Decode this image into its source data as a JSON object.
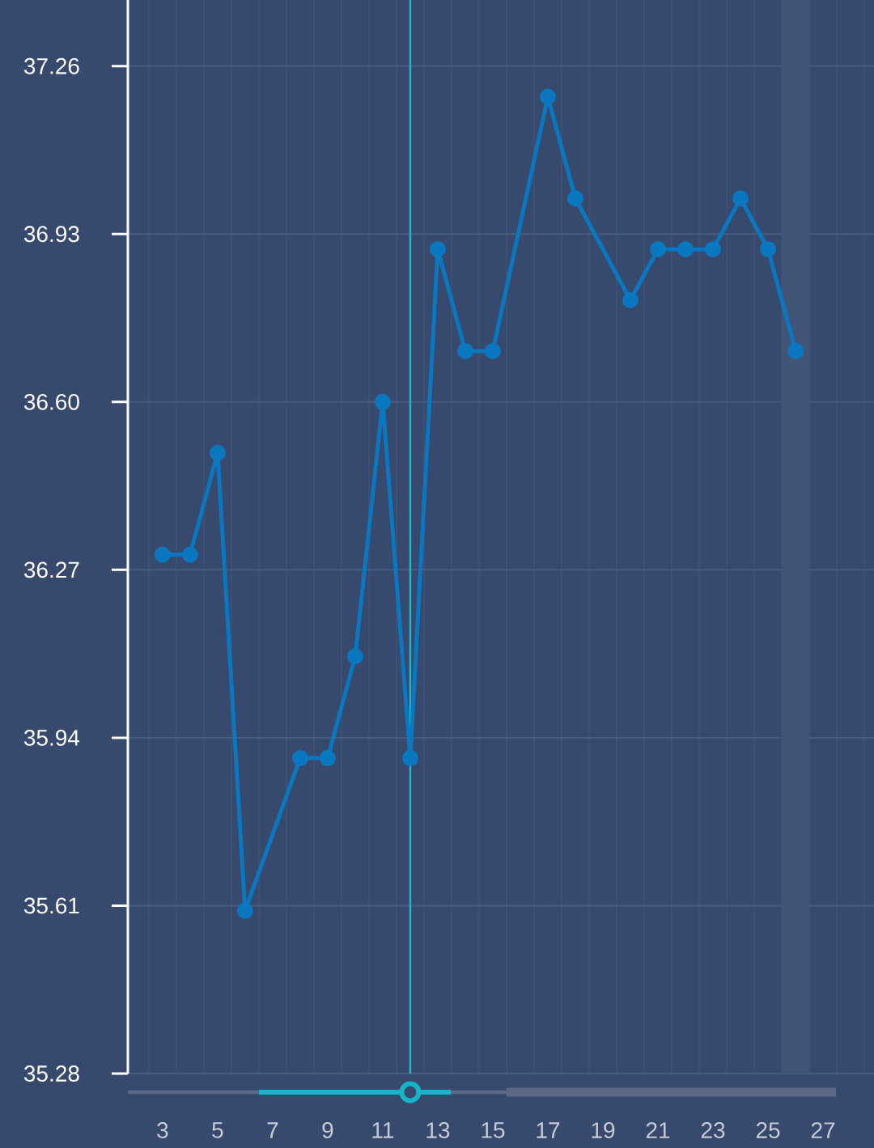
{
  "chart_data": {
    "type": "line",
    "x": [
      3,
      4,
      5,
      6,
      8,
      9,
      10,
      11,
      12,
      13,
      14,
      15,
      17,
      18,
      20,
      21,
      22,
      23,
      24,
      25,
      26
    ],
    "series": [
      {
        "color": "#0a78c0",
        "values": [
          36.3,
          36.3,
          36.5,
          35.6,
          35.9,
          35.9,
          36.1,
          36.6,
          35.9,
          36.9,
          36.7,
          36.7,
          37.2,
          37.0,
          36.8,
          36.9,
          36.9,
          36.9,
          37.0,
          36.9,
          36.7
        ]
      }
    ],
    "xlim": [
      1.74,
      28.85
    ],
    "ylim": [
      35.28,
      37.39
    ],
    "xticks": [
      3,
      5,
      7,
      9,
      11,
      13,
      15,
      17,
      19,
      21,
      23,
      25,
      27,
      {
        "value": 2.5,
        "label": null
      },
      {
        "value": 3.5,
        "label": null
      },
      {
        "value": 4.5,
        "label": null
      },
      {
        "value": 5.5,
        "label": null
      },
      {
        "value": 6.5,
        "label": null
      },
      {
        "value": 7.5,
        "label": null
      },
      {
        "value": 8.5,
        "label": null
      },
      {
        "value": 9.5,
        "label": null
      },
      {
        "value": 10.5,
        "label": null
      },
      {
        "value": 11.5,
        "label": null
      },
      {
        "value": 12.5,
        "label": null
      },
      {
        "value": 13.5,
        "label": null
      },
      {
        "value": 14.5,
        "label": null
      },
      {
        "value": 15.5,
        "label": null
      },
      {
        "value": 16.5,
        "label": null
      },
      {
        "value": 17.5,
        "label": null
      },
      {
        "value": 18.5,
        "label": null
      },
      {
        "value": 19.5,
        "label": null
      },
      {
        "value": 20.5,
        "label": null
      },
      {
        "value": 21.5,
        "label": null
      },
      {
        "value": 22.5,
        "label": null
      },
      {
        "value": 23.5,
        "label": null
      },
      {
        "value": 24.5,
        "label": null
      },
      {
        "value": 25.5,
        "label": null
      },
      {
        "value": 26.5,
        "label": null
      },
      {
        "value": 27.5,
        "label": null
      },
      {
        "value": 28.5,
        "label": null
      }
    ],
    "yticks": [
      35.28,
      35.61,
      35.94,
      36.27,
      {
        "value": 36.6,
        "label": "36.60"
      },
      36.93,
      37.26
    ],
    "grid": true,
    "marker": "circle",
    "line_style": "solid",
    "ref_lines": [
      {
        "axis": "x",
        "value": 12,
        "color": "#1cb8c9"
      }
    ],
    "bands": [
      {
        "axis": "x",
        "from": 25.5,
        "to": 26.5,
        "color": "#435577"
      }
    ]
  }
}
